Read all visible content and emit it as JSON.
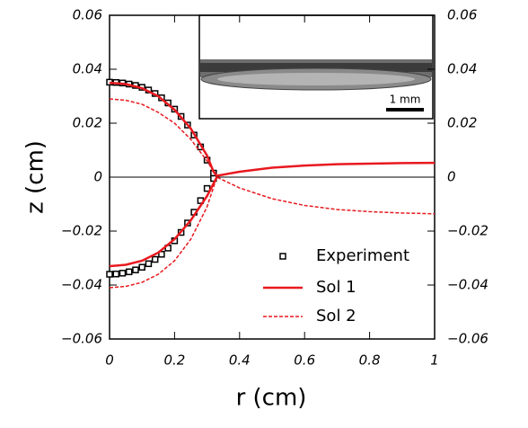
{
  "chart_data": {
    "type": "line",
    "xlabel": "r (cm)",
    "ylabel": "z (cm)",
    "annotation": "1 mm",
    "xlim": [
      0,
      1
    ],
    "xticks": [
      0,
      0.2,
      0.4,
      0.6,
      0.8,
      1
    ],
    "ylim": [
      -0.06,
      0.06
    ],
    "yticks": [
      {
        "value": -0.06,
        "label": "−0.06"
      },
      {
        "value": -0.04,
        "label": "−0.04"
      },
      {
        "value": -0.02,
        "label": "−0.02"
      },
      0,
      0.02,
      0.04,
      0.06
    ],
    "y2lim": [
      -0.06,
      0.06
    ],
    "y2ticks": [
      {
        "value": -0.06,
        "label": "−0.06"
      },
      {
        "value": -0.04,
        "label": "−0.04"
      },
      {
        "value": -0.02,
        "label": "−0.02"
      },
      0,
      0.02,
      0.04,
      0.06
    ],
    "legend": "lower right",
    "series": [
      {
        "name": "Experiment",
        "type": "scatter",
        "color": "#000000",
        "x": [
          0,
          0.02,
          0.04,
          0.06,
          0.08,
          0.1,
          0.12,
          0.14,
          0.16,
          0.18,
          0.2,
          0.22,
          0.24,
          0.26,
          0.28,
          0.3,
          0.32,
          null,
          0,
          0.02,
          0.04,
          0.06,
          0.08,
          0.1,
          0.12,
          0.14,
          0.16,
          0.18,
          0.2,
          0.22,
          0.24,
          0.26,
          0.28,
          0.3,
          0.32
        ],
        "values": [
          0.0352,
          0.0351,
          0.0349,
          0.0345,
          0.034,
          0.0333,
          0.0323,
          0.031,
          0.0294,
          0.0275,
          0.0252,
          0.0225,
          0.0193,
          0.0156,
          0.0112,
          0.0063,
          0.0015,
          null,
          -0.036,
          -0.0359,
          -0.0356,
          -0.0351,
          -0.0344,
          -0.0334,
          -0.0321,
          -0.0305,
          -0.0286,
          -0.0263,
          -0.0236,
          -0.0205,
          -0.017,
          -0.013,
          -0.0087,
          -0.0042,
          -0.0005
        ]
      },
      {
        "name": "Sol 1",
        "color": "#e8191f",
        "dash": false,
        "x": [
          0,
          0.05,
          0.1,
          0.15,
          0.2,
          0.25,
          0.3,
          0.32,
          0.33,
          0.4,
          0.5,
          0.6,
          0.7,
          0.8,
          0.9,
          1,
          null,
          0,
          0.05,
          0.1,
          0.15,
          0.2,
          0.25,
          0.3,
          0.33
        ],
        "values": [
          0.035,
          0.0345,
          0.033,
          0.03,
          0.025,
          0.018,
          0.008,
          0.002,
          0.0005,
          0.002,
          0.0035,
          0.0043,
          0.0048,
          0.005,
          0.0052,
          0.0053,
          null,
          -0.033,
          -0.0325,
          -0.031,
          -0.028,
          -0.023,
          -0.016,
          -0.007,
          0
        ]
      },
      {
        "name": "Sol 2",
        "color": "#e8191f",
        "dash": true,
        "x": [
          0,
          0.05,
          0.1,
          0.15,
          0.2,
          0.25,
          0.3,
          0.33,
          0.4,
          0.5,
          0.6,
          0.7,
          0.8,
          0.9,
          1,
          null,
          0,
          0.05,
          0.1,
          0.15,
          0.2,
          0.25,
          0.3,
          0.33
        ],
        "values": [
          0.029,
          0.0285,
          0.027,
          0.024,
          0.02,
          0.014,
          0.006,
          0,
          -0.004,
          -0.008,
          -0.0105,
          -0.012,
          -0.0128,
          -0.0133,
          -0.0136,
          null,
          -0.041,
          -0.0405,
          -0.039,
          -0.036,
          -0.031,
          -0.023,
          -0.011,
          0
        ]
      }
    ]
  }
}
